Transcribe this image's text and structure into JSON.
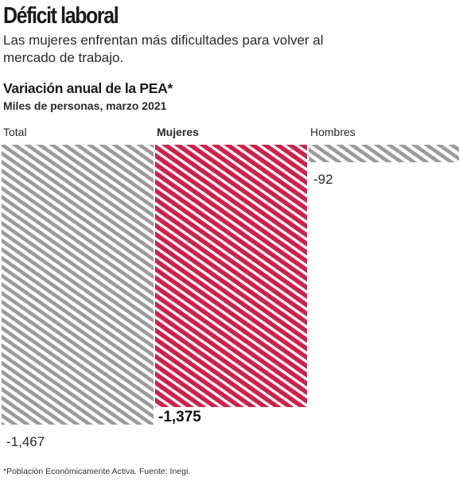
{
  "headline": "Déficit laboral",
  "deck": "Las mujeres enfrentan más dificultades para volver al mercado de trabajo.",
  "footnote": "*Población Económicamente Activa. Fuente: Inegi.",
  "colors": {
    "total_stripe": "#9a9a9a",
    "mujeres_fill": "#cf2049",
    "hombres_stripe": "#9a9a9a",
    "text": "#222222"
  },
  "chart_data": {
    "type": "bar",
    "title": "Variación anual de la PEA*",
    "subtitle": "Miles de personas, marzo 2021",
    "categories": [
      "Total",
      "Mujeres",
      "Hombres"
    ],
    "values": [
      -1467,
      -1375,
      -92
    ],
    "value_labels": [
      "-1,467",
      "-1,375",
      "-92"
    ],
    "highlight": "Mujeres",
    "ylim": [
      -1467,
      0
    ],
    "grid": false,
    "legend": "none"
  }
}
